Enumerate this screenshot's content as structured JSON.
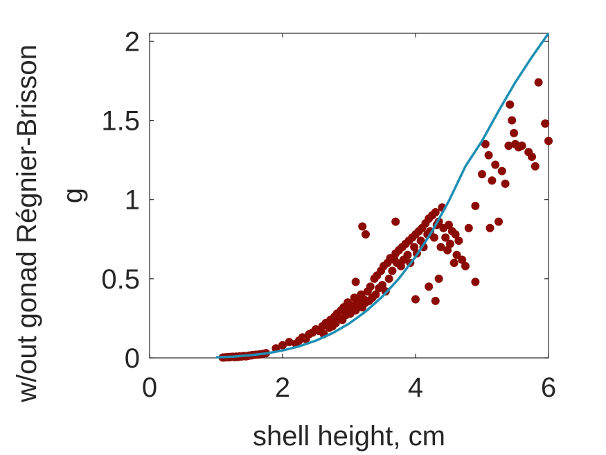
{
  "chart_data": {
    "type": "scatter",
    "xlabel": "shell height, cm",
    "ylabel_line1": "w/out gonad Régnier-Brisson",
    "ylabel_line2": "g",
    "xlim": [
      0,
      6
    ],
    "ylim": [
      0,
      2.05
    ],
    "xticks": [
      0,
      2,
      4,
      6
    ],
    "xtick_labels": [
      "0",
      "2",
      "4",
      "6"
    ],
    "yticks": [
      0,
      0.5,
      1,
      1.5,
      2
    ],
    "ytick_labels": [
      "0",
      "0.5",
      "1",
      "1.5",
      "2"
    ],
    "grid": false,
    "fit_curve": {
      "color": "#1f8fb4",
      "x": [
        1.0,
        1.25,
        1.5,
        1.75,
        2.0,
        2.25,
        2.5,
        2.75,
        3.0,
        3.25,
        3.5,
        3.75,
        4.0,
        4.25,
        4.5,
        4.75,
        5.0,
        5.25,
        5.5,
        5.75,
        6.0
      ],
      "y": [
        0.004,
        0.008,
        0.016,
        0.028,
        0.047,
        0.073,
        0.109,
        0.156,
        0.217,
        0.293,
        0.387,
        0.501,
        0.638,
        0.8,
        0.99,
        1.21,
        1.37,
        1.56,
        1.74,
        1.9,
        2.05
      ]
    },
    "series": [
      {
        "color": "#8b0b04",
        "x": [
          1.1,
          1.13,
          1.15,
          1.18,
          1.2,
          1.22,
          1.25,
          1.28,
          1.3,
          1.33,
          1.35,
          1.38,
          1.4,
          1.42,
          1.45,
          1.48,
          1.5,
          1.53,
          1.55,
          1.6,
          1.65,
          1.7,
          1.75,
          1.9,
          2.0,
          2.1,
          2.2,
          2.25,
          2.3,
          2.35,
          2.4,
          2.45,
          2.5,
          2.55,
          2.6,
          2.62,
          2.65,
          2.7,
          2.72,
          2.75,
          2.78,
          2.8,
          2.82,
          2.85,
          2.88,
          2.9,
          2.92,
          2.95,
          2.98,
          3.0,
          3.02,
          3.05,
          3.08,
          3.1,
          3.12,
          3.15,
          3.18,
          3.2,
          3.22,
          3.25,
          3.28,
          3.3,
          3.32,
          3.35,
          3.38,
          3.4,
          3.42,
          3.45,
          3.48,
          3.5,
          3.52,
          3.55,
          3.58,
          3.6,
          3.62,
          3.65,
          3.68,
          3.7,
          3.72,
          3.75,
          3.78,
          3.8,
          3.82,
          3.85,
          3.88,
          3.9,
          3.92,
          3.95,
          3.98,
          4.0,
          4.02,
          4.05,
          4.08,
          4.1,
          4.12,
          4.15,
          4.18,
          4.2,
          4.22,
          4.25,
          4.28,
          4.3,
          4.32,
          4.35,
          4.38,
          4.4,
          4.42,
          4.45,
          4.48,
          4.5,
          4.52,
          4.55,
          4.58,
          4.6,
          4.62,
          4.65,
          4.7,
          4.75,
          4.8,
          4.9,
          5.0,
          5.05,
          5.1,
          5.12,
          5.15,
          5.2,
          5.25,
          5.3,
          5.35,
          5.4,
          5.42,
          5.45,
          5.48,
          5.5,
          5.55,
          5.6,
          5.7,
          5.75,
          5.8,
          5.85,
          5.95,
          6.0,
          3.1,
          3.25,
          3.7,
          4.35,
          4.2,
          4.9,
          3.2,
          2.5,
          4.0,
          4.3
        ],
        "y": [
          0.002,
          0.003,
          0.004,
          0.005,
          0.004,
          0.006,
          0.007,
          0.005,
          0.008,
          0.006,
          0.01,
          0.009,
          0.011,
          0.012,
          0.01,
          0.013,
          0.015,
          0.016,
          0.018,
          0.02,
          0.022,
          0.025,
          0.03,
          0.06,
          0.08,
          0.1,
          0.09,
          0.11,
          0.13,
          0.12,
          0.15,
          0.16,
          0.18,
          0.17,
          0.2,
          0.15,
          0.22,
          0.19,
          0.24,
          0.2,
          0.26,
          0.22,
          0.28,
          0.25,
          0.3,
          0.24,
          0.32,
          0.27,
          0.35,
          0.3,
          0.28,
          0.33,
          0.38,
          0.3,
          0.36,
          0.34,
          0.4,
          0.32,
          0.37,
          0.35,
          0.42,
          0.36,
          0.45,
          0.38,
          0.5,
          0.4,
          0.52,
          0.44,
          0.55,
          0.46,
          0.58,
          0.42,
          0.6,
          0.5,
          0.63,
          0.55,
          0.62,
          0.66,
          0.6,
          0.68,
          0.58,
          0.7,
          0.62,
          0.72,
          0.65,
          0.74,
          0.6,
          0.76,
          0.7,
          0.78,
          0.66,
          0.8,
          0.74,
          0.82,
          0.7,
          0.85,
          0.78,
          0.88,
          0.8,
          0.9,
          0.76,
          0.92,
          0.84,
          0.86,
          0.7,
          0.95,
          0.82,
          0.76,
          0.68,
          0.84,
          0.72,
          0.8,
          0.6,
          0.78,
          0.65,
          0.74,
          0.62,
          0.58,
          0.82,
          0.96,
          1.16,
          1.35,
          1.28,
          0.82,
          1.12,
          1.22,
          0.86,
          1.18,
          1.1,
          1.34,
          1.6,
          1.5,
          1.42,
          1.35,
          1.33,
          1.34,
          1.3,
          1.27,
          1.21,
          1.74,
          1.48,
          1.37,
          0.48,
          0.78,
          0.86,
          0.5,
          0.45,
          0.48,
          0.83,
          0.18,
          0.37,
          0.36
        ]
      }
    ]
  }
}
